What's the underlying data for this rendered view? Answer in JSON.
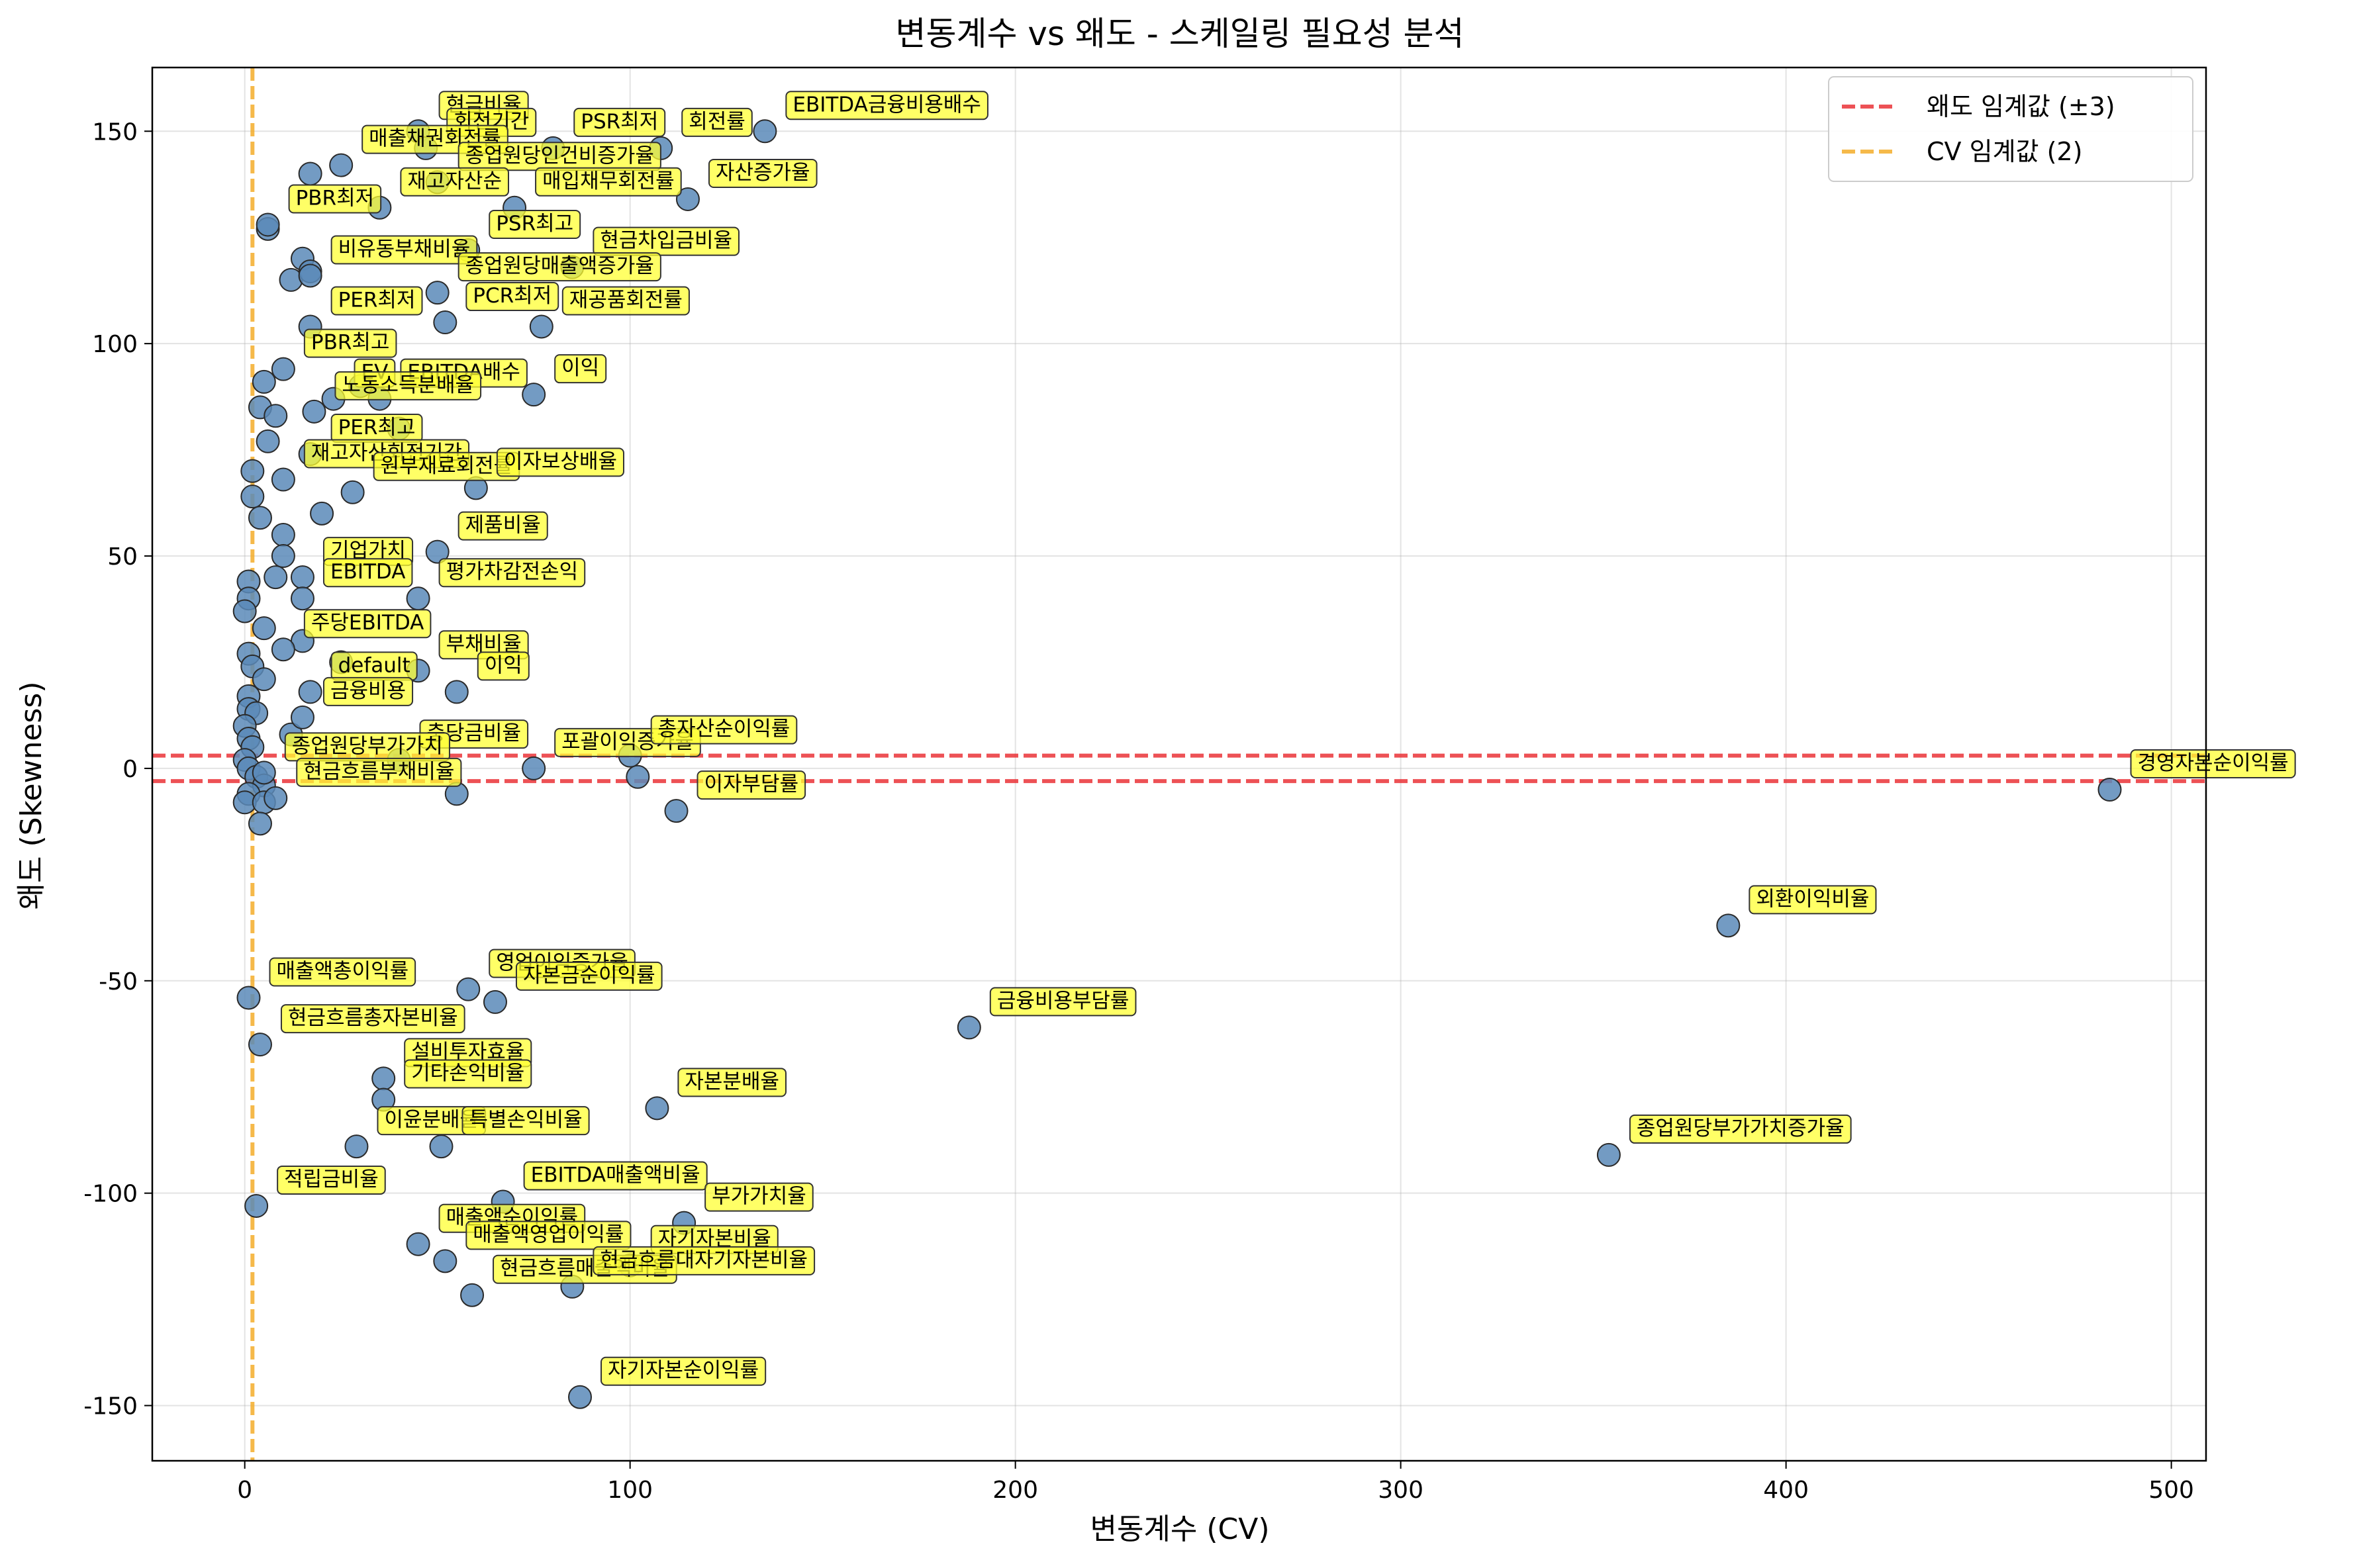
{
  "chart_data": {
    "type": "scatter",
    "title": "변동계수 vs 왜도 - 스케일링 필요성 분석",
    "xlabel": "변동계수 (CV)",
    "ylabel": "왜도 (Skewness)",
    "xlim": [
      -24,
      509
    ],
    "ylim": [
      -163,
      165
    ],
    "xticks": [
      0,
      100,
      200,
      300,
      400,
      500
    ],
    "yticks": [
      -150,
      -100,
      -50,
      0,
      50,
      100,
      150
    ],
    "grid": true,
    "legend_position": "top-right",
    "point_color": "#5b8ab8",
    "label_box_color": "#ffff33",
    "reference_lines": [
      {
        "name": "왜도 임계값 (±3)",
        "orientation": "horizontal",
        "values": [
          3,
          -3
        ],
        "color": "#e8262a",
        "style": "dashed"
      },
      {
        "name": "CV 임계값 (2)",
        "orientation": "vertical",
        "values": [
          2
        ],
        "color": "#f2a81d",
        "style": "dashed"
      }
    ],
    "points": [
      {
        "label": "EBITDA금융비용배수",
        "x": 135,
        "y": 150
      },
      {
        "label": "현금비율",
        "x": 45,
        "y": 150
      },
      {
        "label": "회전기간",
        "x": 47,
        "y": 146
      },
      {
        "label": "PSR최저",
        "x": 80,
        "y": 146
      },
      {
        "label": "회전률",
        "x": 108,
        "y": 146
      },
      {
        "label": "매출채권회전률",
        "x": 25,
        "y": 142
      },
      {
        "label": "종업원당인건비증가율",
        "x": 50,
        "y": 138
      },
      {
        "label": "매입채무회전률",
        "x": 70,
        "y": 132
      },
      {
        "label": "재고자산순",
        "x": 35,
        "y": 132
      },
      {
        "label": "자산증가율",
        "x": 115,
        "y": 134
      },
      {
        "label": "PBR최저",
        "x": 6,
        "y": 128
      },
      {
        "label": "PSR최고",
        "x": 58,
        "y": 122
      },
      {
        "label": "현금차입금비율",
        "x": 85,
        "y": 118
      },
      {
        "label": "비유동부채비율",
        "x": 17,
        "y": 116
      },
      {
        "label": "종업원당매출액증가율",
        "x": 50,
        "y": 112
      },
      {
        "label": "PER최저",
        "x": 17,
        "y": 104
      },
      {
        "label": "PCR최저",
        "x": 52,
        "y": 105
      },
      {
        "label": "재공품회전률",
        "x": 77,
        "y": 104
      },
      {
        "label": "PBR최고",
        "x": 10,
        "y": 94
      },
      {
        "label": "EBITDA배수",
        "x": 35,
        "y": 87
      },
      {
        "label": "EV",
        "x": 23,
        "y": 87
      },
      {
        "label": "이익",
        "x": 75,
        "y": 88
      },
      {
        "label": "노동소득분배율",
        "x": 18,
        "y": 84
      },
      {
        "label": "PER최고",
        "x": 17,
        "y": 74
      },
      {
        "label": "재고자산회전기간",
        "x": 10,
        "y": 68
      },
      {
        "label": "원부재료회전률",
        "x": 28,
        "y": 65
      },
      {
        "label": "이자보상배율",
        "x": 60,
        "y": 66
      },
      {
        "label": "제품비율",
        "x": 50,
        "y": 51
      },
      {
        "label": "기업가치",
        "x": 15,
        "y": 45
      },
      {
        "label": "EBITDA",
        "x": 15,
        "y": 40
      },
      {
        "label": "평가차감전손익",
        "x": 45,
        "y": 40
      },
      {
        "label": "주당EBITDA",
        "x": 10,
        "y": 28
      },
      {
        "label": "부채비율",
        "x": 45,
        "y": 23
      },
      {
        "label": "default",
        "x": 17,
        "y": 18
      },
      {
        "label": "이익",
        "x": 55,
        "y": 18
      },
      {
        "label": "금융비용",
        "x": 15,
        "y": 12
      },
      {
        "label": "충당금비율",
        "x": 40,
        "y": 2
      },
      {
        "label": "포괄이익증가율",
        "x": 75,
        "y": 0
      },
      {
        "label": "총자산순이익률",
        "x": 100,
        "y": 3
      },
      {
        "label": "종업원당부가가치",
        "x": 5,
        "y": -1
      },
      {
        "label": "이자부담률",
        "x": 112,
        "y": -10
      },
      {
        "label": "현금흐름부채비율",
        "x": 8,
        "y": -7
      },
      {
        "label": "경영자본순이익률",
        "x": 484,
        "y": -5
      },
      {
        "label": "외환이익비율",
        "x": 385,
        "y": -37
      },
      {
        "label": "매출액총이익률",
        "x": 1,
        "y": -54
      },
      {
        "label": "영업이익증가율",
        "x": 58,
        "y": -52
      },
      {
        "label": "자본금순이익률",
        "x": 65,
        "y": -55
      },
      {
        "label": "금융비용부담률",
        "x": 188,
        "y": -61
      },
      {
        "label": "현금흐름총자본비율",
        "x": 4,
        "y": -65
      },
      {
        "label": "설비투자효율",
        "x": 36,
        "y": -73
      },
      {
        "label": "기타손익비율",
        "x": 36,
        "y": -78
      },
      {
        "label": "자본분배율",
        "x": 107,
        "y": -80
      },
      {
        "label": "이윤분배율",
        "x": 29,
        "y": -89
      },
      {
        "label": "특별손익비율",
        "x": 51,
        "y": -89
      },
      {
        "label": "종업원당부가가치증가율",
        "x": 354,
        "y": -91
      },
      {
        "label": "적립금비율",
        "x": 3,
        "y": -103
      },
      {
        "label": "EBITDA매출액비율",
        "x": 67,
        "y": -102
      },
      {
        "label": "부가가치율",
        "x": 114,
        "y": -107
      },
      {
        "label": "매출액순이익률",
        "x": 45,
        "y": -112
      },
      {
        "label": "매출액영업이익률",
        "x": 52,
        "y": -116
      },
      {
        "label": "자기자본비율",
        "x": 100,
        "y": -117
      },
      {
        "label": "현금흐름매출액비율",
        "x": 59,
        "y": -124
      },
      {
        "label": "현금흐름대자기자본비율",
        "x": 85,
        "y": -122
      },
      {
        "label": "자기자본순이익률",
        "x": 87,
        "y": -148
      }
    ],
    "extra_points": [
      {
        "x": 17,
        "y": 140
      },
      {
        "x": 6,
        "y": 127
      },
      {
        "x": 15,
        "y": 120
      },
      {
        "x": 12,
        "y": 115
      },
      {
        "x": 17,
        "y": 117
      },
      {
        "x": 5,
        "y": 91
      },
      {
        "x": 4,
        "y": 85
      },
      {
        "x": 8,
        "y": 83
      },
      {
        "x": 6,
        "y": 77
      },
      {
        "x": 2,
        "y": 70
      },
      {
        "x": 2,
        "y": 64
      },
      {
        "x": 4,
        "y": 59
      },
      {
        "x": 10,
        "y": 55
      },
      {
        "x": 1,
        "y": 44
      },
      {
        "x": 1,
        "y": 40
      },
      {
        "x": 0,
        "y": 37
      },
      {
        "x": 5,
        "y": 33
      },
      {
        "x": 1,
        "y": 27
      },
      {
        "x": 2,
        "y": 24
      },
      {
        "x": 5,
        "y": 21
      },
      {
        "x": 1,
        "y": 17
      },
      {
        "x": 1,
        "y": 14
      },
      {
        "x": 3,
        "y": 13
      },
      {
        "x": 0,
        "y": 10
      },
      {
        "x": 1,
        "y": 7
      },
      {
        "x": 2,
        "y": 5
      },
      {
        "x": 0,
        "y": 2
      },
      {
        "x": 1,
        "y": 0
      },
      {
        "x": 3,
        "y": -2
      },
      {
        "x": 5,
        "y": -4
      },
      {
        "x": 1,
        "y": -6
      },
      {
        "x": 0,
        "y": -8
      },
      {
        "x": 5,
        "y": -8
      },
      {
        "x": 4,
        "y": -13
      },
      {
        "x": 55,
        "y": -6
      },
      {
        "x": 102,
        "y": -2
      },
      {
        "x": 10,
        "y": 50
      },
      {
        "x": 20,
        "y": 60
      },
      {
        "x": 40,
        "y": 80
      },
      {
        "x": 30,
        "y": 90
      },
      {
        "x": 15,
        "y": 30
      },
      {
        "x": 25,
        "y": 25
      },
      {
        "x": 12,
        "y": 8
      },
      {
        "x": 8,
        "y": 45
      }
    ]
  }
}
